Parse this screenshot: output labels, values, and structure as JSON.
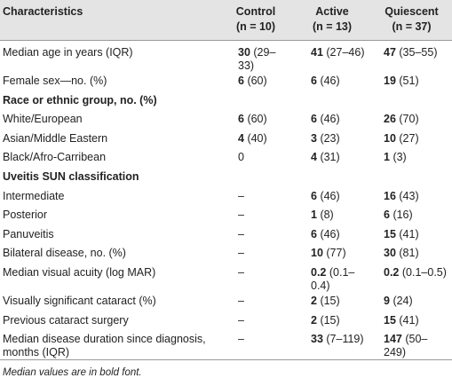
{
  "table": {
    "header": [
      "Characteristics",
      "Control",
      "Active",
      "Quiescent"
    ],
    "subheader": [
      "(n = 10)",
      "(n = 13)",
      "(n = 37)"
    ],
    "rows": [
      {
        "label": "Median age in years (IQR)",
        "cells": [
          {
            "value": "30",
            "range": "(29–33)"
          },
          {
            "value": "41",
            "range": "(27–46)"
          },
          {
            "value": "47",
            "range": "(35–55)"
          }
        ]
      },
      {
        "label": "Female sex—no. (%)",
        "cells": [
          {
            "value": "6",
            "range": "(60)"
          },
          {
            "value": "6",
            "range": "(46)"
          },
          {
            "value": "19",
            "range": "(51)"
          }
        ]
      },
      {
        "label": "Race or ethnic group, no. (%)",
        "section": true
      },
      {
        "label": "White/European",
        "cells": [
          {
            "value": "6",
            "range": "(60)"
          },
          {
            "value": "6",
            "range": "(46)"
          },
          {
            "value": "26",
            "range": "(70)"
          }
        ]
      },
      {
        "label": "Asian/Middle Eastern",
        "cells": [
          {
            "value": "4",
            "range": "(40)"
          },
          {
            "value": "3",
            "range": "(23)"
          },
          {
            "value": "10",
            "range": "(27)"
          }
        ]
      },
      {
        "label": "Black/Afro-Carribean",
        "cells": [
          "0",
          {
            "value": "4",
            "range": "(31)"
          },
          {
            "value": "1",
            "range": "(3)"
          }
        ]
      },
      {
        "label": "Uveitis SUN classification",
        "section": true
      },
      {
        "label": "Intermediate",
        "cells": [
          "–",
          {
            "value": "6",
            "range": "(46)"
          },
          {
            "value": "16",
            "range": "(43)"
          }
        ]
      },
      {
        "label": "Posterior",
        "cells": [
          "–",
          {
            "value": "1",
            "range": "(8)"
          },
          {
            "value": "6",
            "range": "(16)"
          }
        ]
      },
      {
        "label": "Panuveitis",
        "cells": [
          "–",
          {
            "value": "6",
            "range": "(46)"
          },
          {
            "value": "15",
            "range": "(41)"
          }
        ]
      },
      {
        "label": "Bilateral disease, no. (%)",
        "cells": [
          "–",
          {
            "value": "10",
            "range": "(77)"
          },
          {
            "value": "30",
            "range": "(81)"
          }
        ]
      },
      {
        "label": "Median visual acuity (log MAR)",
        "cells": [
          "–",
          {
            "value": "0.2",
            "range": "(0.1–0.4)"
          },
          {
            "value": "0.2",
            "range": "(0.1–0.5)"
          }
        ]
      },
      {
        "label": "Visually significant cataract (%)",
        "cells": [
          "–",
          {
            "value": "2",
            "range": "(15)"
          },
          {
            "value": "9",
            "range": "(24)"
          }
        ]
      },
      {
        "label": "Previous cataract surgery",
        "cells": [
          "–",
          {
            "value": "2",
            "range": "(15)"
          },
          {
            "value": "15",
            "range": "(41)"
          }
        ]
      },
      {
        "label": "Median disease duration since diagnosis, months (IQR)",
        "cells": [
          "–",
          {
            "value": "33",
            "range": "(7–119)"
          },
          {
            "value": "147",
            "range": "(50–249)"
          }
        ]
      }
    ],
    "footnote": "Median values are in bold font."
  }
}
